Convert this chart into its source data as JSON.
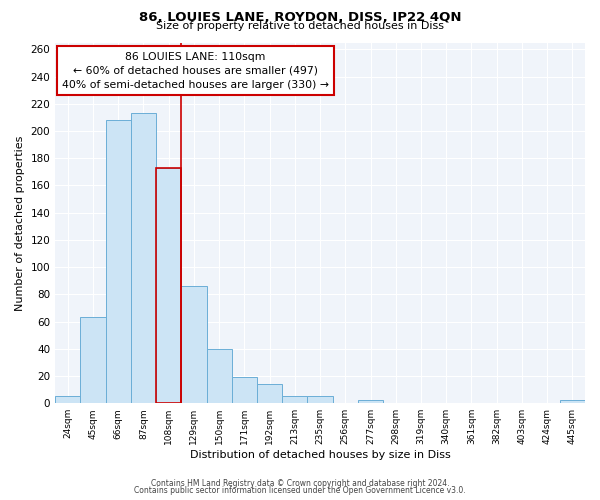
{
  "title": "86, LOUIES LANE, ROYDON, DISS, IP22 4QN",
  "subtitle": "Size of property relative to detached houses in Diss",
  "xlabel": "Distribution of detached houses by size in Diss",
  "ylabel": "Number of detached properties",
  "bar_labels": [
    "24sqm",
    "45sqm",
    "66sqm",
    "87sqm",
    "108sqm",
    "129sqm",
    "150sqm",
    "171sqm",
    "192sqm",
    "213sqm",
    "235sqm",
    "256sqm",
    "277sqm",
    "298sqm",
    "319sqm",
    "340sqm",
    "361sqm",
    "382sqm",
    "403sqm",
    "424sqm",
    "445sqm"
  ],
  "bar_values": [
    5,
    63,
    208,
    213,
    173,
    86,
    40,
    19,
    14,
    5,
    5,
    0,
    2,
    0,
    0,
    0,
    0,
    0,
    0,
    0,
    2
  ],
  "bar_color": "#cce4f5",
  "bar_edge_color": "#6baed6",
  "highlight_index": 4,
  "highlight_color": "#cc0000",
  "annotation_title": "86 LOUIES LANE: 110sqm",
  "annotation_line1": "← 60% of detached houses are smaller (497)",
  "annotation_line2": "40% of semi-detached houses are larger (330) →",
  "ylim": [
    0,
    265
  ],
  "yticks": [
    0,
    20,
    40,
    60,
    80,
    100,
    120,
    140,
    160,
    180,
    200,
    220,
    240,
    260
  ],
  "footer1": "Contains HM Land Registry data © Crown copyright and database right 2024.",
  "footer2": "Contains public sector information licensed under the Open Government Licence v3.0.",
  "bg_color": "#ffffff",
  "plot_bg_color": "#f0f4fa",
  "grid_color": "#ffffff"
}
